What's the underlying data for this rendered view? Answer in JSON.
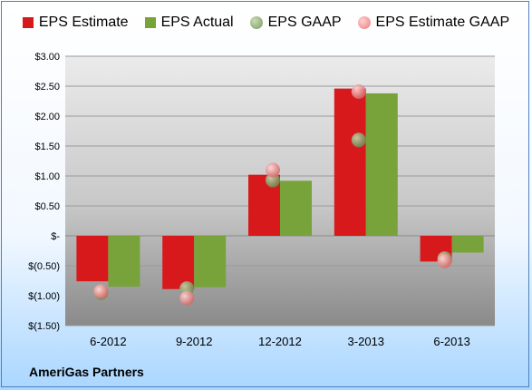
{
  "company": "AmeriGas Partners",
  "legend": [
    {
      "label": "EPS Estimate",
      "color": "#d7191c",
      "shape": "square"
    },
    {
      "label": "EPS Actual",
      "color": "#77a33a",
      "shape": "square"
    },
    {
      "label": "EPS GAAP",
      "color": "#8aa870",
      "shape": "circle"
    },
    {
      "label": "EPS Estimate GAAP",
      "color": "#f08080",
      "shape": "circle"
    }
  ],
  "chart_data": {
    "type": "bar",
    "categories": [
      "6-2012",
      "9-2012",
      "12-2012",
      "3-2013",
      "6-2013"
    ],
    "series": [
      {
        "name": "EPS Estimate",
        "type": "bar",
        "color": "#d7191c",
        "values": [
          -0.76,
          -0.89,
          1.02,
          2.46,
          -0.43
        ]
      },
      {
        "name": "EPS Actual",
        "type": "bar",
        "color": "#77a33a",
        "values": [
          -0.85,
          -0.86,
          0.92,
          2.38,
          -0.28
        ]
      },
      {
        "name": "EPS GAAP",
        "type": "scatter",
        "color": "#8aa870",
        "values": [
          -0.95,
          -0.88,
          0.93,
          1.6,
          -0.38
        ]
      },
      {
        "name": "EPS Estimate GAAP",
        "type": "scatter",
        "color": "#f08080",
        "values": [
          -0.93,
          -1.04,
          1.1,
          2.41,
          -0.42
        ]
      }
    ],
    "ylim": [
      -1.5,
      3.0
    ],
    "ytick_values": [
      3.0,
      2.5,
      2.0,
      1.5,
      1.0,
      0.5,
      0,
      -0.5,
      -1.0,
      -1.5
    ],
    "ytick_labels": [
      "$3.00",
      "$2.50",
      "$2.00",
      "$1.50",
      "$1.00",
      "$0.50",
      "$-",
      "$(0.50)",
      "$(1.00)",
      "$(1.50)"
    ],
    "grid": true,
    "legend_position": "top"
  }
}
